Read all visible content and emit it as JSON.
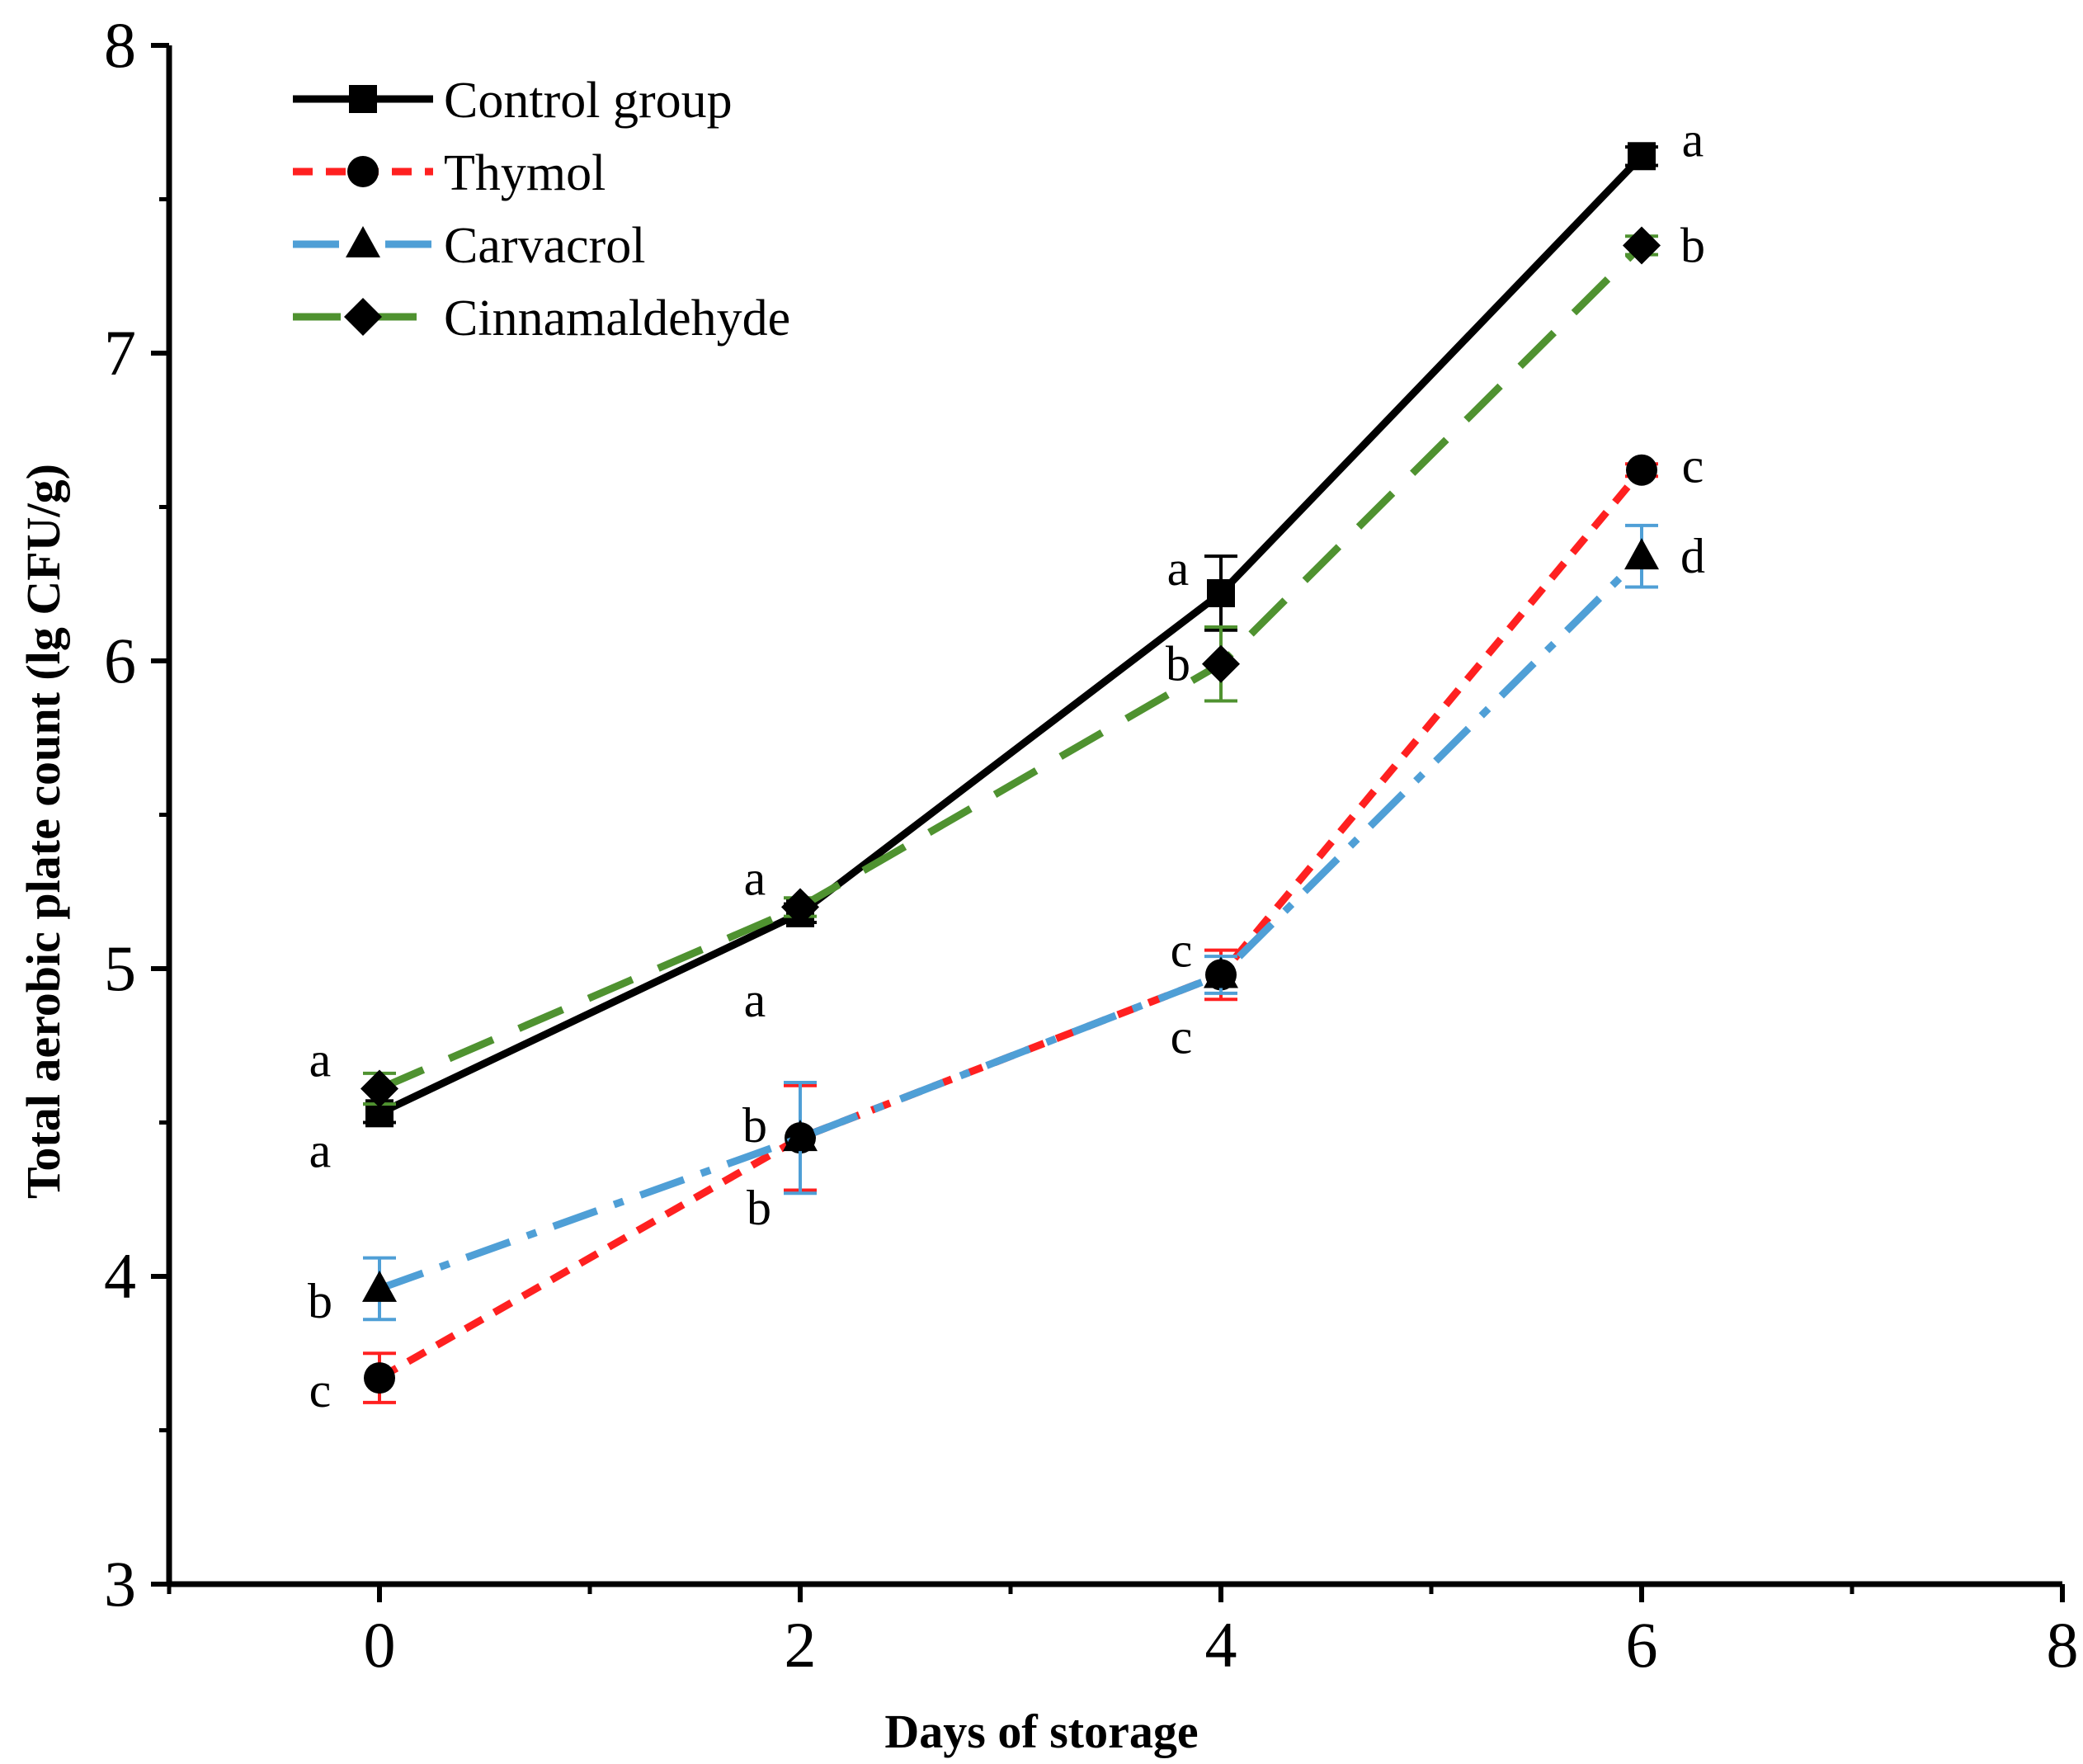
{
  "chart_data": {
    "type": "line",
    "title": "",
    "xlabel": "Days of storage",
    "ylabel": "Total aerobic plate count (lg CFU/g)",
    "xlim": [
      -1,
      8
    ],
    "ylim": [
      3,
      8
    ],
    "xticks": [
      0,
      2,
      4,
      6,
      8
    ],
    "yticks": [
      3,
      4,
      5,
      6,
      7,
      8
    ],
    "grid": false,
    "legend_position": "top-left",
    "series": [
      {
        "name": "Control group",
        "color": "#000000",
        "line_style": "solid",
        "marker": "square",
        "x": [
          0,
          2,
          4,
          6
        ],
        "y": [
          4.53,
          5.18,
          6.22,
          7.64
        ],
        "error": [
          0.03,
          0.03,
          0.12,
          0.03
        ],
        "labels": [
          "a",
          "a",
          "a",
          "a"
        ]
      },
      {
        "name": "Thymol",
        "color": "#ff2020",
        "line_style": "dotted",
        "marker": "circle",
        "x": [
          0,
          2,
          4,
          6
        ],
        "y": [
          3.67,
          4.45,
          4.98,
          6.62
        ],
        "error": [
          0.08,
          0.17,
          0.08,
          0.02
        ],
        "labels": [
          "c",
          "b",
          "c",
          "c"
        ]
      },
      {
        "name": "Carvacrol",
        "color": "#4f9fd6",
        "line_style": "dash-dot",
        "marker": "triangle",
        "x": [
          0,
          2,
          4,
          6
        ],
        "y": [
          3.96,
          4.45,
          4.98,
          6.34
        ],
        "error": [
          0.1,
          0.18,
          0.06,
          0.1
        ],
        "labels": [
          "b",
          "b",
          "c",
          "d"
        ]
      },
      {
        "name": "Cinnamaldehyde",
        "color": "#4f9230",
        "line_style": "dashed",
        "marker": "diamond",
        "x": [
          0,
          2,
          4,
          6
        ],
        "y": [
          4.61,
          5.2,
          5.99,
          7.35
        ],
        "error": [
          0.05,
          0.03,
          0.12,
          0.03
        ],
        "labels": [
          "a",
          "a",
          "b",
          "b"
        ]
      }
    ],
    "annotations": [
      {
        "text": "a",
        "x": 0,
        "y": 4.61
      },
      {
        "text": "a",
        "x": 0,
        "y": 4.53
      },
      {
        "text": "b",
        "x": 0,
        "y": 3.96
      },
      {
        "text": "c",
        "x": 0,
        "y": 3.67
      },
      {
        "text": "a",
        "x": 2,
        "y": 5.2
      },
      {
        "text": "a",
        "x": 2,
        "y": 5.18
      },
      {
        "text": "b",
        "x": 2,
        "y": 4.45
      },
      {
        "text": "b",
        "x": 2,
        "y": 4.45
      },
      {
        "text": "a",
        "x": 4,
        "y": 6.22
      },
      {
        "text": "b",
        "x": 4,
        "y": 5.99
      },
      {
        "text": "c",
        "x": 4,
        "y": 4.98
      },
      {
        "text": "c",
        "x": 4,
        "y": 4.98
      },
      {
        "text": "a",
        "x": 6,
        "y": 7.64
      },
      {
        "text": "b",
        "x": 6,
        "y": 7.35
      },
      {
        "text": "c",
        "x": 6,
        "y": 6.62
      },
      {
        "text": "d",
        "x": 6,
        "y": 6.34
      }
    ]
  }
}
